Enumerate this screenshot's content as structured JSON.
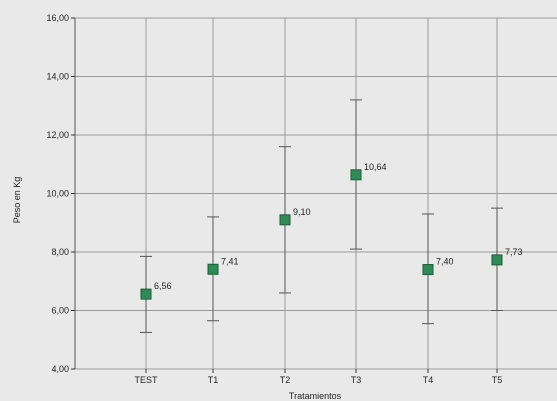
{
  "chart_data": {
    "type": "scatter",
    "xlabel": "Tratamientos",
    "ylabel": "Peso en Kg",
    "ylim": [
      4,
      16
    ],
    "yticks": [
      "4,00",
      "6,00",
      "8,00",
      "10,00",
      "12,00",
      "14,00",
      "16,00"
    ],
    "ytick_values": [
      4,
      6,
      8,
      10,
      12,
      14,
      16
    ],
    "categories": [
      "TEST",
      "T1",
      "T2",
      "T3",
      "T4",
      "T5"
    ],
    "values": [
      6.56,
      7.41,
      9.1,
      10.64,
      7.4,
      7.73
    ],
    "value_labels": [
      "6,56",
      "7,41",
      "9,10",
      "10,64",
      "7,40",
      "7,73"
    ],
    "error_low": [
      5.25,
      5.65,
      6.6,
      8.1,
      5.55,
      6.0
    ],
    "error_high": [
      7.85,
      9.2,
      11.6,
      13.2,
      9.3,
      9.5
    ],
    "grid": true,
    "colors": {
      "marker": "#2e8b57",
      "marker_edge": "#1a5c38",
      "grid": "#9a9a9a",
      "error_bar": "#555555",
      "background": "#e9e9e9"
    }
  }
}
